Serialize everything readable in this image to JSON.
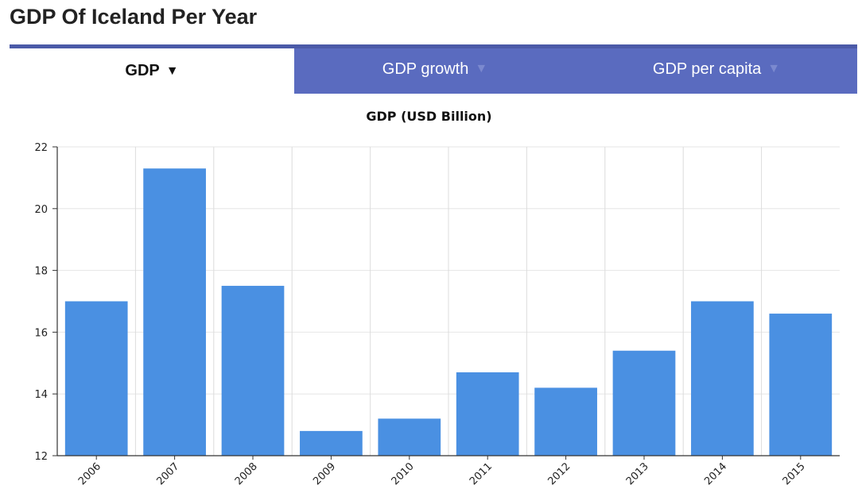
{
  "header": {
    "title": "GDP Of Iceland Per Year"
  },
  "tabs": [
    {
      "label": "GDP",
      "arrow": "▼",
      "active": true
    },
    {
      "label": "GDP growth",
      "arrow": "▼",
      "active": false
    },
    {
      "label": "GDP per capita",
      "arrow": "▼",
      "active": false
    }
  ],
  "colors": {
    "bar": "#4a90e2",
    "tab_bg": "#5a6bbf"
  },
  "chart_data": {
    "type": "bar",
    "title": "GDP (USD Billion)",
    "categories": [
      "2006",
      "2007",
      "2008",
      "2009",
      "2010",
      "2011",
      "2012",
      "2013",
      "2014",
      "2015"
    ],
    "values": [
      17.0,
      21.3,
      17.5,
      12.8,
      13.2,
      14.7,
      14.2,
      15.4,
      17.0,
      16.6
    ],
    "ylim": [
      12,
      22
    ],
    "yticks": [
      12,
      14,
      16,
      18,
      20,
      22
    ],
    "grid": true
  }
}
